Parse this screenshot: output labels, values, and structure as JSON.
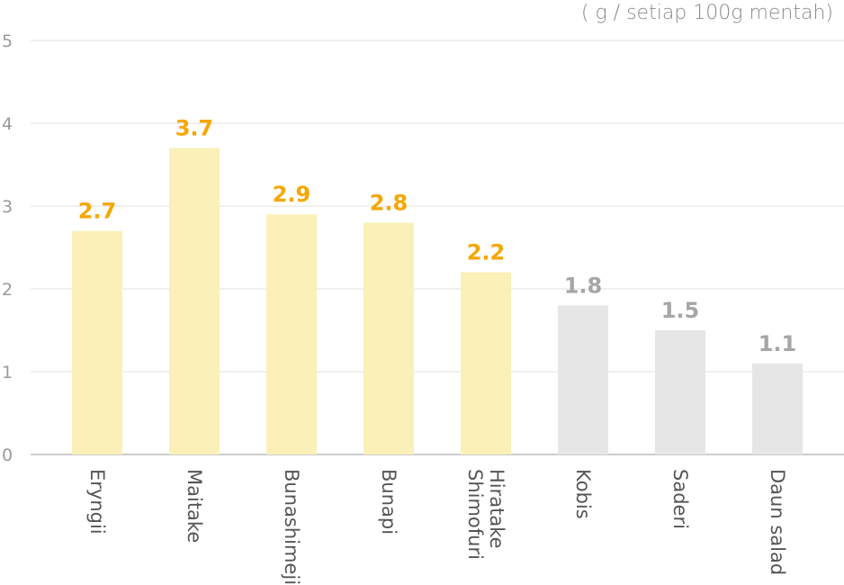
{
  "unit_label": "( g / setiap 100g mentah)",
  "colors": {
    "highlight_bar": "#faf0b8",
    "highlight_label": "#f5a700",
    "muted_bar": "#e6e6e6",
    "muted_label": "#a6a6a6",
    "grid": "#ececec",
    "axis": "#cccccc"
  },
  "chart_data": {
    "type": "bar",
    "categories": [
      "Eryngii",
      "Maitake",
      "Bunashimeji",
      "Bunapi",
      "Shimofuri Hiratake",
      "Kobis",
      "Saderi",
      "Daun salad"
    ],
    "category_lines": [
      [
        "Eryngii"
      ],
      [
        "Maitake"
      ],
      [
        "Bunashimeji"
      ],
      [
        "Bunapi"
      ],
      [
        "Shimofuri",
        "Hiratake"
      ],
      [
        "Kobis"
      ],
      [
        "Saderi"
      ],
      [
        "Daun salad"
      ]
    ],
    "values": [
      2.7,
      3.7,
      2.9,
      2.8,
      2.2,
      1.8,
      1.5,
      1.1
    ],
    "value_labels": [
      "2.7",
      "3.7",
      "2.9",
      "2.8",
      "2.2",
      "1.8",
      "1.5",
      "1.1"
    ],
    "highlighted": [
      true,
      true,
      true,
      true,
      true,
      false,
      false,
      false
    ],
    "yticks": [
      0,
      1,
      2,
      3,
      4,
      5
    ],
    "ylim": [
      0,
      5
    ],
    "grid": true,
    "legend": "none"
  }
}
